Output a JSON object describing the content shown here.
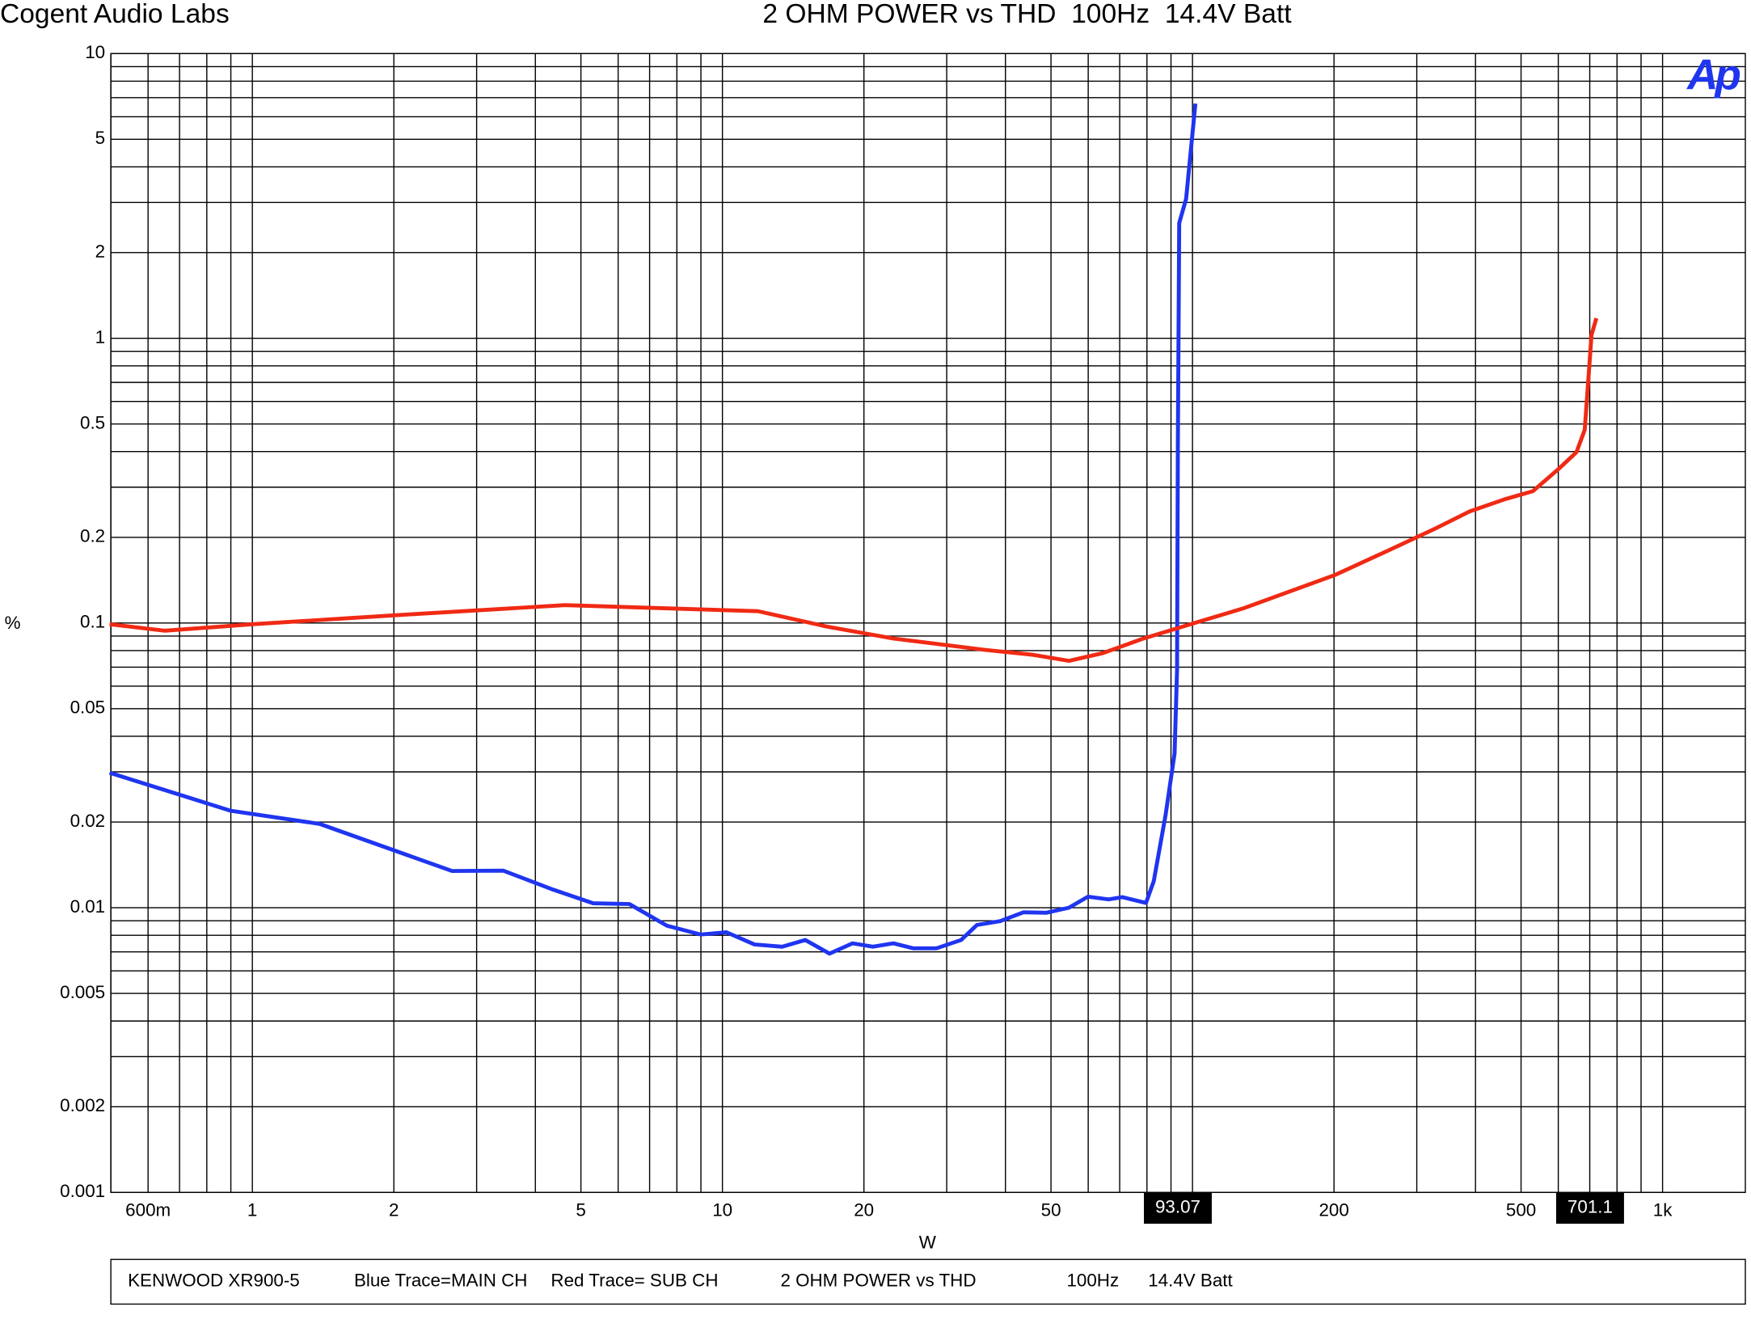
{
  "chart_data": {
    "type": "line",
    "header": "Cogent Audio Labs",
    "title": "2 OHM POWER vs THD  100Hz  14.4V Batt",
    "logo": "Ap",
    "x_label": "W",
    "y_label": "%",
    "log_x": true,
    "log_y": true,
    "grid": true,
    "xlim": [
      0.5,
      1500
    ],
    "ylim": [
      0.001,
      10
    ],
    "xticks": [
      {
        "value": 0.6,
        "label": "600m"
      },
      1,
      2,
      5,
      10,
      20,
      50,
      200,
      500,
      {
        "value": 1000,
        "label": "1k"
      }
    ],
    "yticks": [
      10,
      5,
      2,
      1,
      0.5,
      0.2,
      0.1,
      0.05,
      0.02,
      0.01,
      0.005,
      0.002,
      0.001
    ],
    "cursors": [
      93.07,
      701.1
    ],
    "series": [
      {
        "color": "#1f35f0",
        "x": [
          0.497,
          0.9,
          1.39,
          2.66,
          3.42,
          4.37,
          5.31,
          6.34,
          7.62,
          8.98,
          10.2,
          11.7,
          13.4,
          15.0,
          16.9,
          18.9,
          20.9,
          23.1,
          25.5,
          28.5,
          32.2,
          34.8,
          39.0,
          43.7,
          48.9,
          54.6,
          59.9,
          66.3,
          70.9,
          79.6,
          82.7,
          87.6,
          91.6,
          92.7,
          93.1,
          93.7,
          96.9,
          101.4
        ],
        "values": [
          0.0298,
          0.0219,
          0.0197,
          0.01346,
          0.0135,
          0.01156,
          0.01037,
          0.0103,
          0.00865,
          0.00805,
          0.0082,
          0.00743,
          0.0073,
          0.0077,
          0.0069,
          0.0075,
          0.0073,
          0.0075,
          0.0072,
          0.0072,
          0.0077,
          0.0087,
          0.00897,
          0.00964,
          0.0096,
          0.01,
          0.01094,
          0.0107,
          0.0109,
          0.0104,
          0.0124,
          0.0211,
          0.0348,
          0.0685,
          0.417,
          2.54,
          3.09,
          6.67
        ]
      },
      {
        "color": "#f02a14",
        "x": [
          0.497,
          0.652,
          1,
          2,
          4.62,
          11.9,
          16.6,
          23.1,
          36.1,
          45.6,
          54.6,
          64.5,
          78.6,
          103,
          128,
          201,
          264,
          330,
          389,
          462,
          530,
          601,
          656,
          683,
          698,
          706,
          723
        ],
        "values": [
          0.099,
          0.094,
          0.099,
          0.1064,
          0.1155,
          0.11,
          0.0973,
          0.0882,
          0.0805,
          0.0774,
          0.0736,
          0.0784,
          0.0882,
          0.101,
          0.1125,
          0.1475,
          0.1815,
          0.2155,
          0.2466,
          0.2723,
          0.2904,
          0.3477,
          0.398,
          0.477,
          0.783,
          1.027,
          1.177
        ]
      }
    ],
    "footer": [
      "KENWOOD XR900-5",
      "Blue Trace=MAIN CH",
      "Red Trace= SUB CH",
      "2 OHM POWER vs THD",
      "100Hz",
      "14.4V Batt"
    ]
  }
}
